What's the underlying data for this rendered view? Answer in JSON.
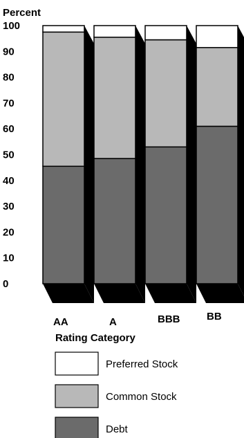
{
  "chart_data": {
    "type": "bar",
    "stacked": true,
    "three_d": true,
    "ylabel": "Percent",
    "xlabel": "Rating Category",
    "ylim": [
      0,
      100
    ],
    "yticks": [
      "0",
      "10",
      "20",
      "30",
      "40",
      "50",
      "60",
      "70",
      "80",
      "90",
      "100"
    ],
    "categories": [
      "AA",
      "A",
      "BBB",
      "BB"
    ],
    "series": [
      {
        "name": "Debt",
        "color": "#6b6b6b",
        "values": [
          45.5,
          48.5,
          53,
          61
        ]
      },
      {
        "name": "Common Stock",
        "color": "#b8b8b8",
        "values": [
          52,
          47,
          41.5,
          30.5
        ]
      },
      {
        "name": "Preferred Stock",
        "color": "#ffffff",
        "values": [
          2.5,
          4.5,
          5.5,
          8.5
        ]
      }
    ],
    "grid": false,
    "legend_position": "bottom"
  }
}
